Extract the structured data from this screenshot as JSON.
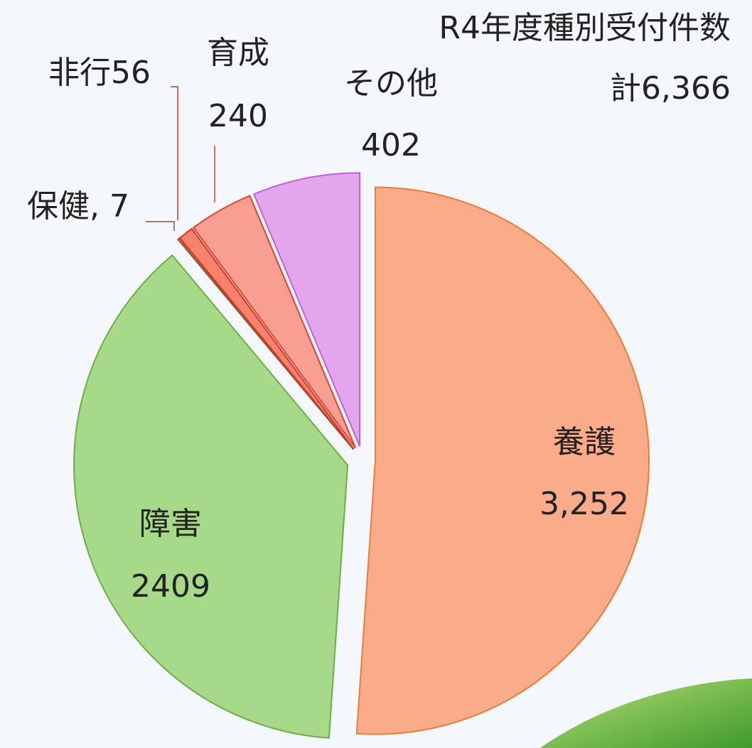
{
  "chart_data": {
    "type": "pie",
    "title": "R4年度種別受付件数",
    "total": "計6,366",
    "categories": [
      "養護",
      "障害",
      "保健",
      "非行",
      "育成",
      "その他"
    ],
    "values": [
      3252,
      2409,
      7,
      56,
      240,
      402
    ],
    "value_labels": [
      "3,252",
      "2409",
      ", 7",
      "56",
      "240",
      "402"
    ],
    "colors": [
      "#f9ab8a",
      "#a6da88",
      "#c4957c",
      "#f7836f",
      "#f89f92",
      "#e3a6ec"
    ],
    "stroke_colors": [
      "#ed7d31",
      "#70ad47",
      "#8a5a3a",
      "#e03020",
      "#e8402a",
      "#c060d8"
    ]
  }
}
